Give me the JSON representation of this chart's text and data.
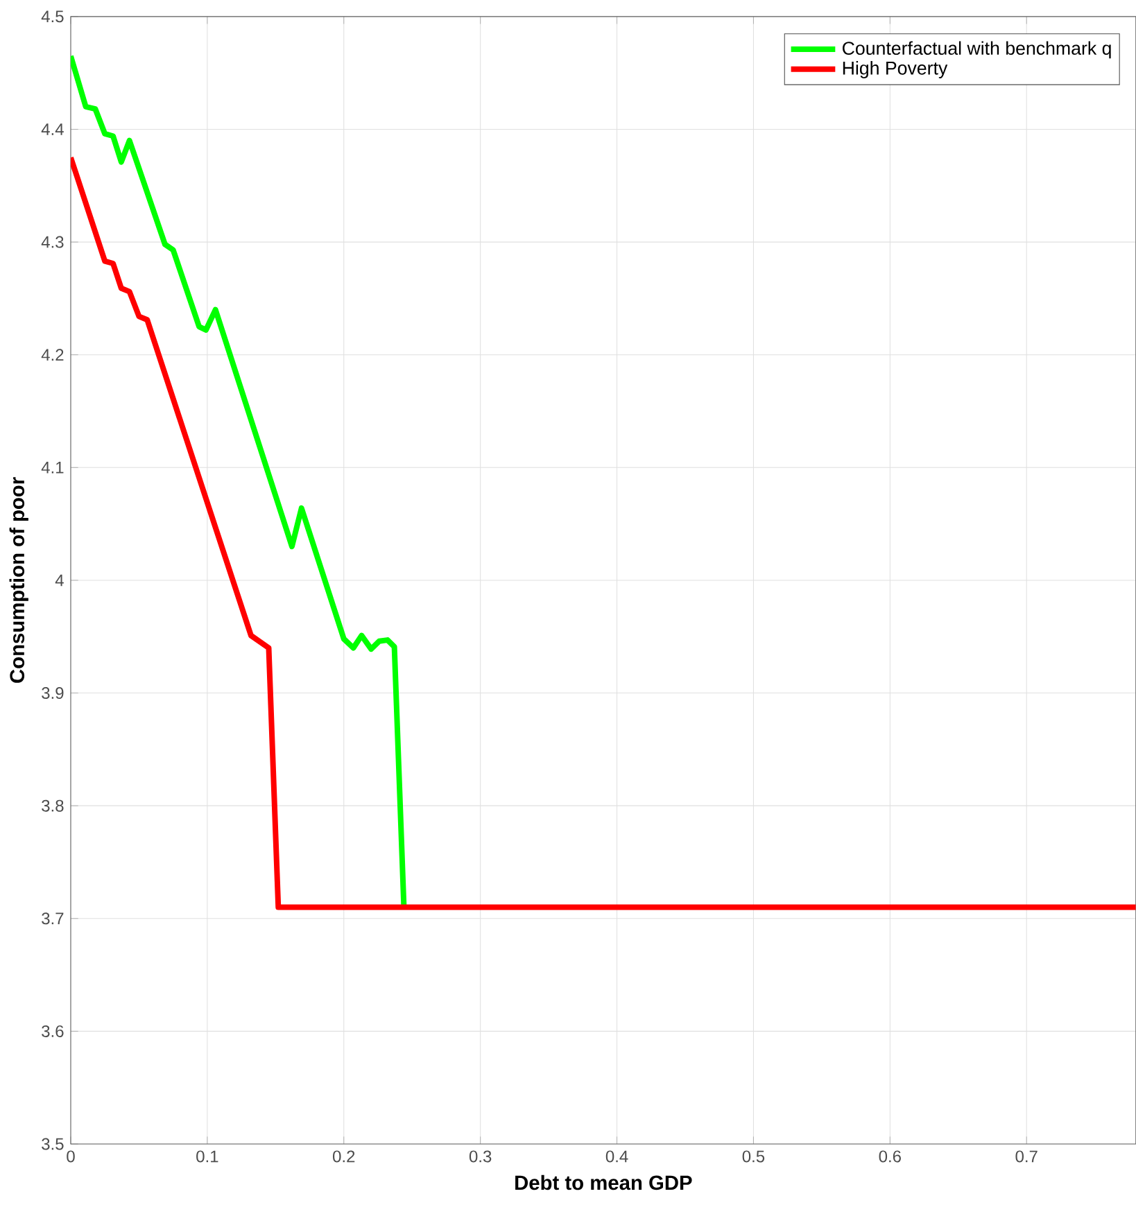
{
  "chart_data": {
    "type": "line",
    "xlabel": "Debt to mean GDP",
    "ylabel": "Consumption of poor",
    "xlim": [
      0,
      0.78
    ],
    "ylim": [
      3.5,
      4.5
    ],
    "xticks": [
      0,
      0.1,
      0.2,
      0.3,
      0.4,
      0.5,
      0.6,
      0.7
    ],
    "yticks": [
      3.5,
      3.6,
      3.7,
      3.8,
      3.9,
      4,
      4.1,
      4.2,
      4.3,
      4.4,
      4.5
    ],
    "grid": true,
    "legend": "top right",
    "line_style": "solid",
    "marker": "none",
    "series": [
      {
        "name": "Counterfactual with benchmark q",
        "color": "#00ff00",
        "x": [
          0,
          0.011,
          0.018,
          0.025,
          0.031,
          0.037,
          0.043,
          0.069,
          0.075,
          0.094,
          0.099,
          0.106,
          0.162,
          0.169,
          0.2,
          0.207,
          0.213,
          0.22,
          0.226,
          0.232,
          0.237,
          0.244
        ],
        "values": [
          4.465,
          4.42,
          4.418,
          4.396,
          4.394,
          4.371,
          4.39,
          4.298,
          4.293,
          4.225,
          4.222,
          4.24,
          4.03,
          4.064,
          3.948,
          3.94,
          3.951,
          3.939,
          3.946,
          3.947,
          3.941,
          3.71
        ]
      },
      {
        "name": "High Poverty",
        "color": "#ff0000",
        "x": [
          0,
          0.025,
          0.031,
          0.037,
          0.043,
          0.05,
          0.056,
          0.132,
          0.145,
          0.152,
          0.78
        ],
        "values": [
          4.375,
          4.283,
          4.281,
          4.259,
          4.256,
          4.234,
          4.231,
          3.951,
          3.94,
          3.71,
          3.71
        ]
      }
    ]
  }
}
